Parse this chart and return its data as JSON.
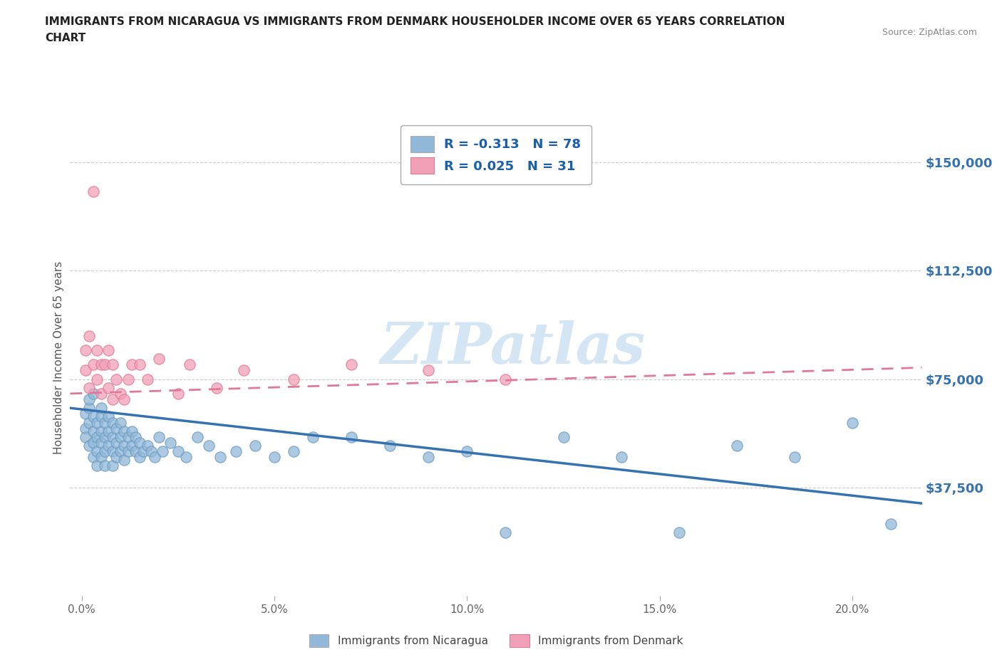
{
  "title_line1": "IMMIGRANTS FROM NICARAGUA VS IMMIGRANTS FROM DENMARK HOUSEHOLDER INCOME OVER 65 YEARS CORRELATION",
  "title_line2": "CHART",
  "source": "Source: ZipAtlas.com",
  "ylabel": "Householder Income Over 65 years",
  "xlabel_ticks": [
    "0.0%",
    "5.0%",
    "10.0%",
    "15.0%",
    "20.0%"
  ],
  "xlabel_vals": [
    0.0,
    0.05,
    0.1,
    0.15,
    0.2
  ],
  "ytick_labels": [
    "$37,500",
    "$75,000",
    "$112,500",
    "$150,000"
  ],
  "ytick_vals": [
    37500,
    75000,
    112500,
    150000
  ],
  "ylim": [
    0,
    165000
  ],
  "xlim": [
    -0.003,
    0.218
  ],
  "nicaragua_R": -0.313,
  "nicaragua_N": 78,
  "denmark_R": 0.025,
  "denmark_N": 31,
  "nicaragua_color": "#92b8d9",
  "nicaragua_edge_color": "#6a9cbf",
  "denmark_color": "#f2a0b8",
  "denmark_edge_color": "#e07898",
  "nicaragua_line_color": "#3572b0",
  "denmark_line_color": "#e07898",
  "watermark_color": "#b8d4ed",
  "grid_color": "#cccccc",
  "right_label_color": "#3572b0",
  "nicaragua_x": [
    0.001,
    0.001,
    0.001,
    0.002,
    0.002,
    0.002,
    0.002,
    0.003,
    0.003,
    0.003,
    0.003,
    0.003,
    0.004,
    0.004,
    0.004,
    0.004,
    0.005,
    0.005,
    0.005,
    0.005,
    0.005,
    0.006,
    0.006,
    0.006,
    0.006,
    0.007,
    0.007,
    0.007,
    0.008,
    0.008,
    0.008,
    0.008,
    0.009,
    0.009,
    0.009,
    0.01,
    0.01,
    0.01,
    0.011,
    0.011,
    0.011,
    0.012,
    0.012,
    0.013,
    0.013,
    0.014,
    0.014,
    0.015,
    0.015,
    0.016,
    0.017,
    0.018,
    0.019,
    0.02,
    0.021,
    0.023,
    0.025,
    0.027,
    0.03,
    0.033,
    0.036,
    0.04,
    0.045,
    0.05,
    0.055,
    0.06,
    0.07,
    0.08,
    0.09,
    0.1,
    0.11,
    0.125,
    0.14,
    0.155,
    0.17,
    0.185,
    0.2,
    0.21
  ],
  "nicaragua_y": [
    63000,
    58000,
    55000,
    65000,
    60000,
    52000,
    68000,
    62000,
    57000,
    53000,
    48000,
    70000,
    60000,
    55000,
    50000,
    45000,
    62000,
    57000,
    53000,
    48000,
    65000,
    60000,
    55000,
    50000,
    45000,
    62000,
    57000,
    52000,
    60000,
    55000,
    50000,
    45000,
    58000,
    53000,
    48000,
    60000,
    55000,
    50000,
    57000,
    52000,
    47000,
    55000,
    50000,
    57000,
    52000,
    55000,
    50000,
    53000,
    48000,
    50000,
    52000,
    50000,
    48000,
    55000,
    50000,
    53000,
    50000,
    48000,
    55000,
    52000,
    48000,
    50000,
    52000,
    48000,
    50000,
    55000,
    55000,
    52000,
    48000,
    50000,
    22000,
    55000,
    48000,
    22000,
    52000,
    48000,
    60000,
    25000
  ],
  "denmark_x": [
    0.001,
    0.001,
    0.002,
    0.002,
    0.003,
    0.003,
    0.004,
    0.004,
    0.005,
    0.005,
    0.006,
    0.007,
    0.007,
    0.008,
    0.008,
    0.009,
    0.01,
    0.011,
    0.012,
    0.013,
    0.015,
    0.017,
    0.02,
    0.025,
    0.028,
    0.035,
    0.042,
    0.055,
    0.07,
    0.09,
    0.11
  ],
  "denmark_y": [
    85000,
    78000,
    90000,
    72000,
    140000,
    80000,
    85000,
    75000,
    80000,
    70000,
    80000,
    85000,
    72000,
    80000,
    68000,
    75000,
    70000,
    68000,
    75000,
    80000,
    80000,
    75000,
    82000,
    70000,
    80000,
    72000,
    78000,
    75000,
    80000,
    78000,
    75000
  ]
}
